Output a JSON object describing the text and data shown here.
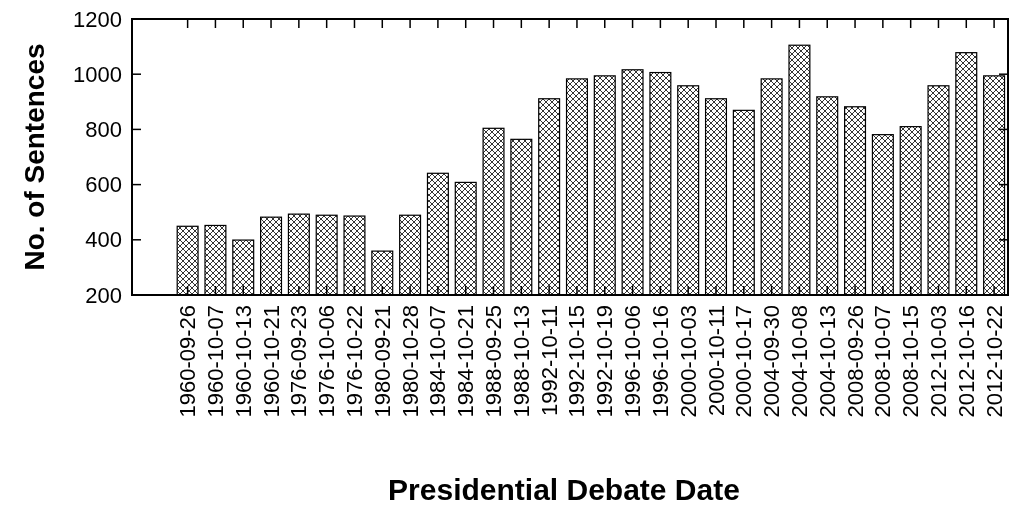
{
  "chart_data": {
    "type": "bar",
    "xlabel": "Presidential Debate Date",
    "ylabel": "No. of Sentences",
    "categories": [
      "1960-09-26",
      "1960-10-07",
      "1960-10-13",
      "1960-10-21",
      "1976-09-23",
      "1976-10-06",
      "1976-10-22",
      "1980-09-21",
      "1980-10-28",
      "1984-10-07",
      "1984-10-21",
      "1988-09-25",
      "1988-10-13",
      "1992-10-11",
      "1992-10-15",
      "1992-10-19",
      "1996-10-06",
      "1996-10-16",
      "2000-10-03",
      "2000-10-11",
      "2000-10-17",
      "2004-09-30",
      "2004-10-08",
      "2004-10-13",
      "2008-09-26",
      "2008-10-07",
      "2008-10-15",
      "2012-10-03",
      "2012-10-16",
      "2012-10-22"
    ],
    "values": [
      449,
      452,
      399,
      482,
      493,
      489,
      486,
      359,
      489,
      641,
      608,
      804,
      764,
      911,
      983,
      994,
      1016,
      1006,
      958,
      911,
      869,
      983,
      1105,
      918,
      882,
      781,
      810,
      958,
      1078,
      994
    ],
    "color": "#000000",
    "ylim": [
      200,
      1200
    ],
    "yticks": [
      200,
      400,
      600,
      800,
      1000,
      1200
    ],
    "grid": false
  }
}
